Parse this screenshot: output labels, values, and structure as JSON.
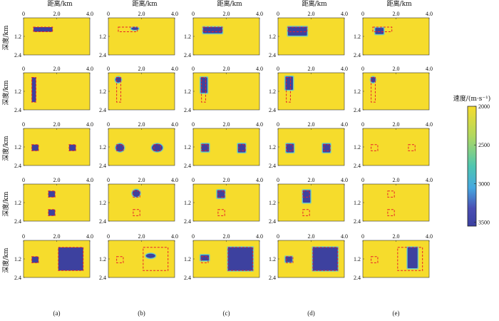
{
  "chart_data": {
    "type": "heatmap",
    "xlabel": "距离/km",
    "ylabel": "深度/km",
    "x_ticks": [
      "0",
      "2.0",
      "4.0"
    ],
    "y_ticks": [
      "1.2",
      "2.4"
    ],
    "xlim": [
      0,
      4.0
    ],
    "ylim": [
      0,
      2.4
    ],
    "colorbar": {
      "title": "速度/(m·s⁻¹)",
      "ticks": [
        "2000",
        "2500",
        "3000",
        "3500"
      ],
      "range": [
        2000,
        3550
      ],
      "colors": [
        "#f6dc2c",
        "#b0d860",
        "#4ec6b0",
        "#46a8e0",
        "#4a4fb4",
        "#3a3fa0"
      ]
    },
    "background_velocity": 2000,
    "anomaly_velocity": 3500,
    "column_labels": [
      "(a)",
      "(b)",
      "(c)",
      "(d)",
      "(e)"
    ],
    "rows": [
      {
        "true_models": [
          {
            "x0": 0.6,
            "x1": 1.75,
            "z0": 0.6,
            "z1": 0.9
          }
        ],
        "panels": [
          {
            "blobs": [
              {
                "shape": "rect",
                "x0": 0.6,
                "x1": 1.75,
                "z0": 0.6,
                "z1": 0.9
              }
            ]
          },
          {
            "blobs": [
              {
                "shape": "ellipse",
                "cx": 1.6,
                "cz": 0.7,
                "rx": 0.22,
                "rz": 0.08
              }
            ]
          },
          {
            "blobs": [
              {
                "shape": "rect",
                "x0": 0.6,
                "x1": 1.75,
                "z0": 0.6,
                "z1": 1.0
              }
            ]
          },
          {
            "blobs": [
              {
                "shape": "rect",
                "x0": 0.6,
                "x1": 1.75,
                "z0": 0.58,
                "z1": 1.15
              }
            ]
          },
          {
            "blobs": [
              {
                "shape": "rect",
                "x0": 0.75,
                "x1": 1.25,
                "z0": 0.65,
                "z1": 1.05
              }
            ]
          }
        ]
      },
      {
        "true_models": [
          {
            "x0": 0.5,
            "x1": 0.75,
            "z0": 0.3,
            "z1": 1.9
          }
        ],
        "panels": [
          {
            "blobs": [
              {
                "shape": "rect",
                "x0": 0.5,
                "x1": 0.75,
                "z0": 0.3,
                "z1": 1.9
              }
            ]
          },
          {
            "blobs": [
              {
                "shape": "ellipse",
                "cx": 0.6,
                "cz": 0.45,
                "rx": 0.17,
                "rz": 0.18
              }
            ]
          },
          {
            "blobs": [
              {
                "shape": "rect",
                "x0": 0.45,
                "x1": 0.85,
                "z0": 0.3,
                "z1": 1.3
              }
            ]
          },
          {
            "blobs": [
              {
                "shape": "rect",
                "x0": 0.45,
                "x1": 0.9,
                "z0": 0.25,
                "z1": 1.1
              }
            ]
          },
          {
            "blobs": [
              {
                "shape": "ellipse",
                "cx": 0.62,
                "cz": 0.45,
                "rx": 0.14,
                "rz": 0.18
              }
            ]
          }
        ]
      },
      {
        "true_models": [
          {
            "x0": 0.5,
            "x1": 0.9,
            "z0": 1.05,
            "z1": 1.45
          },
          {
            "x0": 2.75,
            "x1": 3.15,
            "z0": 1.05,
            "z1": 1.45
          }
        ],
        "panels": [
          {
            "blobs": [
              {
                "shape": "rect",
                "x0": 0.5,
                "x1": 0.9,
                "z0": 1.05,
                "z1": 1.45
              },
              {
                "shape": "rect",
                "x0": 2.75,
                "x1": 3.15,
                "z0": 1.05,
                "z1": 1.45
              }
            ]
          },
          {
            "blobs": [
              {
                "shape": "ellipse",
                "cx": 0.7,
                "cz": 1.25,
                "rx": 0.25,
                "rz": 0.25
              },
              {
                "shape": "ellipse",
                "cx": 2.95,
                "cz": 1.25,
                "rx": 0.32,
                "rz": 0.25
              }
            ]
          },
          {
            "blobs": [
              {
                "shape": "rect",
                "x0": 0.5,
                "x1": 0.95,
                "z0": 1.0,
                "z1": 1.5
              },
              {
                "shape": "rect",
                "x0": 2.7,
                "x1": 3.15,
                "z0": 1.0,
                "z1": 1.55
              }
            ]
          },
          {
            "blobs": [
              {
                "shape": "rect",
                "x0": 0.5,
                "x1": 0.95,
                "z0": 1.0,
                "z1": 1.55
              },
              {
                "shape": "rect",
                "x0": 2.7,
                "x1": 3.15,
                "z0": 1.0,
                "z1": 1.55
              }
            ]
          },
          {
            "blobs": []
          }
        ]
      },
      {
        "true_models": [
          {
            "x0": 1.5,
            "x1": 1.9,
            "z0": 0.45,
            "z1": 0.85
          },
          {
            "x0": 1.5,
            "x1": 1.9,
            "z0": 1.65,
            "z1": 2.05
          }
        ],
        "panels": [
          {
            "blobs": [
              {
                "shape": "rect",
                "x0": 1.5,
                "x1": 1.9,
                "z0": 0.45,
                "z1": 0.85
              },
              {
                "shape": "rect",
                "x0": 1.5,
                "x1": 1.9,
                "z0": 1.65,
                "z1": 2.05
              }
            ]
          },
          {
            "blobs": [
              {
                "shape": "ellipse",
                "cx": 1.68,
                "cz": 0.6,
                "rx": 0.23,
                "rz": 0.23
              }
            ]
          },
          {
            "blobs": [
              {
                "shape": "rect",
                "x0": 1.45,
                "x1": 1.9,
                "z0": 0.4,
                "z1": 0.9
              }
            ]
          },
          {
            "blobs": [
              {
                "shape": "rect",
                "x0": 1.5,
                "x1": 1.95,
                "z0": 0.4,
                "z1": 1.2
              }
            ]
          },
          {
            "blobs": []
          }
        ]
      },
      {
        "true_models": [
          {
            "x0": 0.5,
            "x1": 0.9,
            "z0": 1.05,
            "z1": 1.45
          },
          {
            "x0": 2.1,
            "x1": 3.6,
            "z0": 0.45,
            "z1": 1.95
          }
        ],
        "panels": [
          {
            "blobs": [
              {
                "shape": "rect",
                "x0": 0.5,
                "x1": 0.9,
                "z0": 1.05,
                "z1": 1.45
              },
              {
                "shape": "rect",
                "x0": 2.1,
                "x1": 3.6,
                "z0": 0.45,
                "z1": 1.95
              }
            ]
          },
          {
            "blobs": [
              {
                "shape": "ellipse",
                "cx": 2.55,
                "cz": 1.0,
                "rx": 0.28,
                "rz": 0.14
              }
            ]
          },
          {
            "blobs": [
              {
                "shape": "rect",
                "x0": 0.45,
                "x1": 0.95,
                "z0": 0.95,
                "z1": 1.3
              },
              {
                "shape": "rect",
                "x0": 2.1,
                "x1": 3.6,
                "z0": 0.45,
                "z1": 1.95
              }
            ]
          },
          {
            "blobs": [
              {
                "shape": "rect",
                "x0": 0.45,
                "x1": 0.85,
                "z0": 1.05,
                "z1": 1.4
              },
              {
                "shape": "rect",
                "x0": 2.1,
                "x1": 3.6,
                "z0": 0.45,
                "z1": 1.95
              }
            ]
          },
          {
            "blobs": [
              {
                "shape": "rect",
                "x0": 2.7,
                "x1": 3.3,
                "z0": 0.45,
                "z1": 1.8
              }
            ]
          }
        ]
      }
    ]
  }
}
